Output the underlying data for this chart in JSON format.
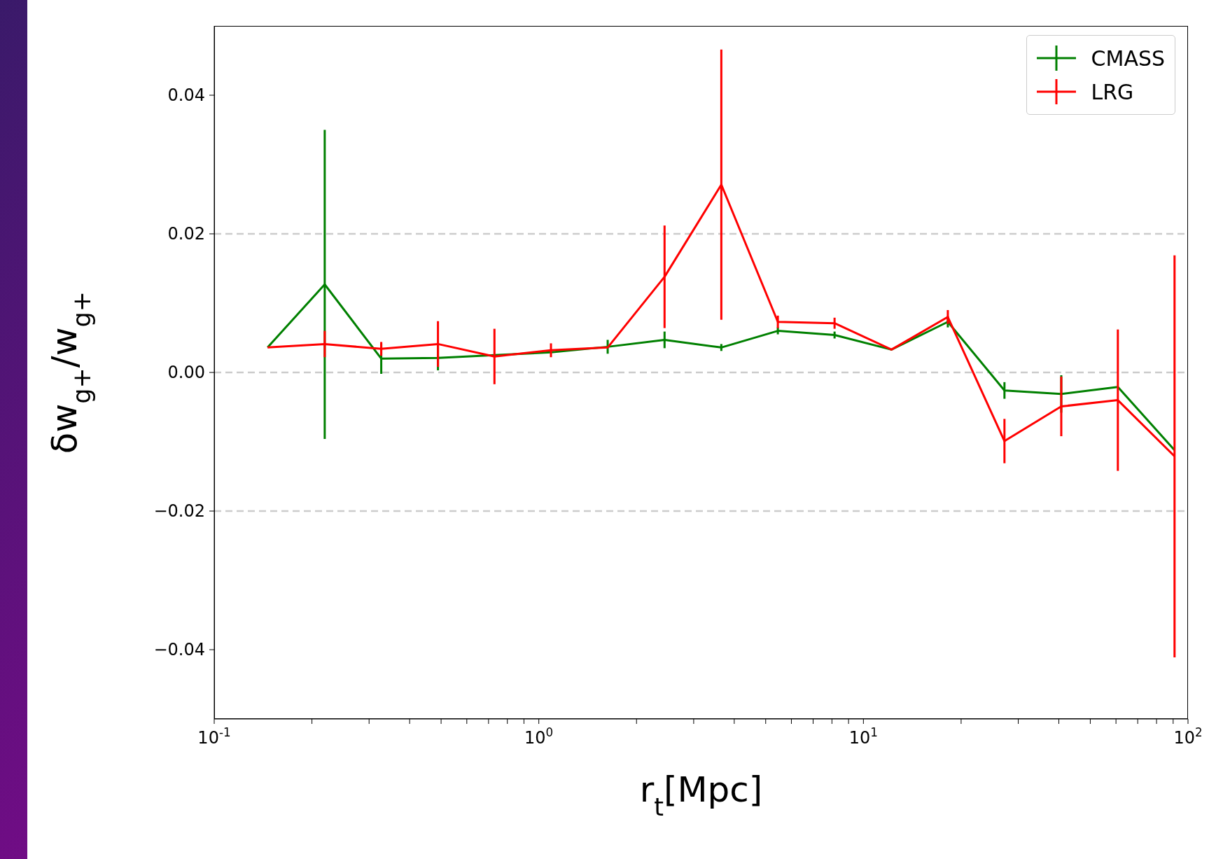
{
  "chart_data": {
    "type": "line",
    "xlabel": "r$_{t}$[Mpc]",
    "ylabel": "δw$_{g+}$/w$_{g+}$",
    "x": [
      0.146,
      0.219,
      0.327,
      0.489,
      0.73,
      1.09,
      1.63,
      2.44,
      3.65,
      5.45,
      8.15,
      12.2,
      18.2,
      27.2,
      40.7,
      60.8,
      90.9
    ],
    "series": [
      {
        "name": "CMASS",
        "color": "#008000",
        "values": [
          0.0036,
          0.0127,
          0.002,
          0.0021,
          0.0025,
          0.0029,
          0.0037,
          0.0047,
          0.0036,
          0.006,
          0.0054,
          0.0033,
          0.0073,
          -0.0026,
          -0.0031,
          -0.0021,
          -0.0112
        ],
        "errors": [
          null,
          0.0223,
          0.0022,
          0.0018,
          null,
          null,
          0.001,
          0.0012,
          0.0005,
          0.0005,
          0.0005,
          null,
          0.0008,
          0.0012,
          0.0027,
          null,
          null
        ]
      },
      {
        "name": "LRG",
        "color": "#ff0000",
        "values": [
          0.0036,
          0.0041,
          0.0034,
          0.0041,
          0.0023,
          0.0032,
          0.0036,
          0.0138,
          0.0271,
          0.0073,
          0.0071,
          0.0033,
          0.008,
          -0.0099,
          -0.0049,
          -0.004,
          -0.0121
        ],
        "errors": [
          null,
          0.0019,
          0.001,
          0.0033,
          0.004,
          0.001,
          null,
          0.0074,
          0.0195,
          0.0009,
          0.0008,
          null,
          0.001,
          0.0032,
          0.0043,
          0.0102,
          0.029
        ]
      }
    ],
    "log": "x",
    "xlim": [
      0.1,
      100
    ],
    "xticks": [
      {
        "value": 0.1,
        "label": "10$^{-1}$"
      },
      {
        "value": 0.2,
        "label": null
      },
      {
        "value": 0.3,
        "label": null
      },
      {
        "value": 0.4,
        "label": null
      },
      {
        "value": 0.5,
        "label": null
      },
      {
        "value": 0.6,
        "label": null
      },
      {
        "value": 0.7,
        "label": null
      },
      {
        "value": 0.8,
        "label": null
      },
      {
        "value": 0.9,
        "label": null
      },
      {
        "value": 1,
        "label": "10$^{0}$"
      },
      {
        "value": 2,
        "label": null
      },
      {
        "value": 3,
        "label": null
      },
      {
        "value": 4,
        "label": null
      },
      {
        "value": 5,
        "label": null
      },
      {
        "value": 6,
        "label": null
      },
      {
        "value": 7,
        "label": null
      },
      {
        "value": 8,
        "label": null
      },
      {
        "value": 9,
        "label": null
      },
      {
        "value": 10,
        "label": "10$^{1}$"
      },
      {
        "value": 20,
        "label": null
      },
      {
        "value": 30,
        "label": null
      },
      {
        "value": 40,
        "label": null
      },
      {
        "value": 50,
        "label": null
      },
      {
        "value": 60,
        "label": null
      },
      {
        "value": 70,
        "label": null
      },
      {
        "value": 80,
        "label": null
      },
      {
        "value": 90,
        "label": null
      },
      {
        "value": 100,
        "label": "10$^{2}$"
      }
    ],
    "ylim": [
      -0.05,
      0.05
    ],
    "yticks": [
      {
        "value": -0.04,
        "label": "−0.04"
      },
      {
        "value": -0.02,
        "label": "−0.02"
      },
      {
        "value": 0,
        "label": "0.00"
      },
      {
        "value": 0.02,
        "label": "0.02"
      },
      {
        "value": 0.04,
        "label": "0.04"
      }
    ],
    "ref_lines": [
      {
        "axis": "y",
        "value": 0.02,
        "color": "#cccccc",
        "line_style": "dashed"
      },
      {
        "axis": "y",
        "value": 0,
        "color": "#cccccc",
        "line_style": "dashed"
      },
      {
        "axis": "y",
        "value": -0.02,
        "color": "#cccccc",
        "line_style": "dashed"
      }
    ],
    "legend": "top right",
    "marker": "none",
    "line_style": "solid"
  }
}
